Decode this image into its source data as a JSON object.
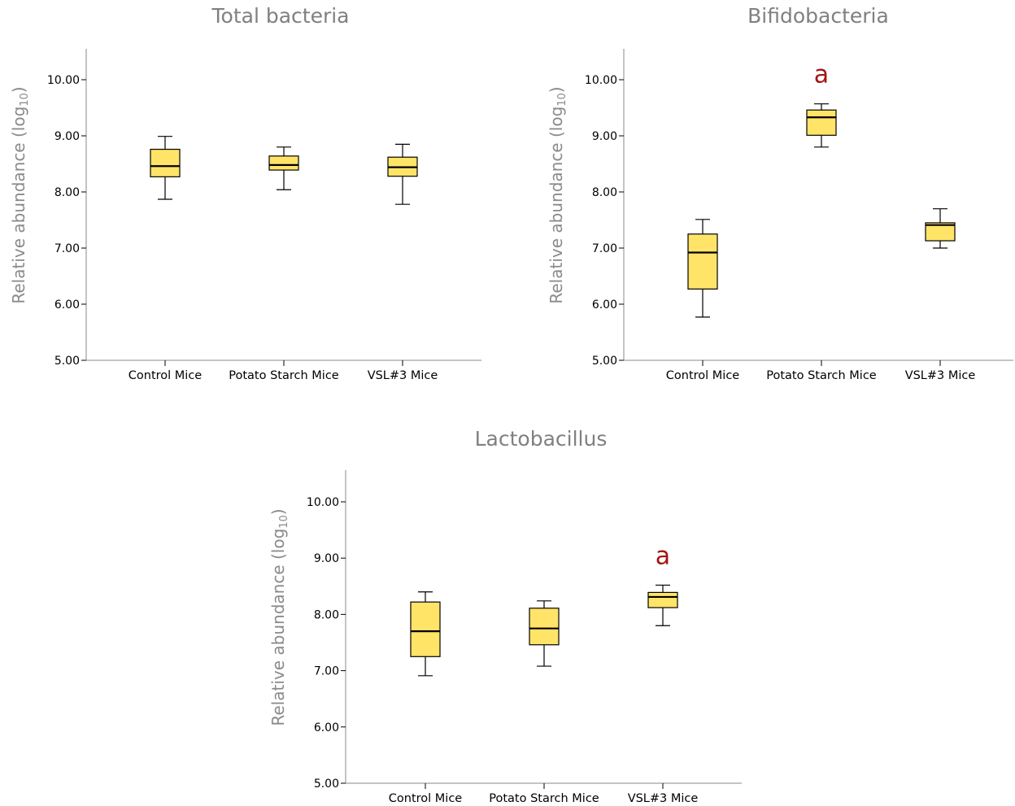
{
  "colors": {
    "box_fill": "#ffe468",
    "title": "#808080",
    "axis_label": "#8a8a8a",
    "axis_line": "#b0b0b0",
    "annotation": "#a31515"
  },
  "chart_data": [
    {
      "type": "box",
      "title": "Total bacteria",
      "ylabel": "Relative abundance (log",
      "ylabel_sub": "10",
      "ylabel_end": ")",
      "ylim": [
        5,
        10.5
      ],
      "yticks": [
        5,
        6,
        7,
        8,
        9,
        10
      ],
      "ytick_labels": [
        "5.00",
        "6.00",
        "7.00",
        "8.00",
        "9.00",
        "10.00"
      ],
      "grid": false,
      "categories": [
        "Control Mice",
        "Potato Starch Mice",
        "VSL#3 Mice"
      ],
      "boxes": [
        {
          "min": 7.87,
          "q1": 8.27,
          "median": 8.46,
          "q3": 8.76,
          "max": 8.99,
          "annotation": ""
        },
        {
          "min": 8.04,
          "q1": 8.39,
          "median": 8.48,
          "q3": 8.64,
          "max": 8.8,
          "annotation": ""
        },
        {
          "min": 7.78,
          "q1": 8.28,
          "median": 8.44,
          "q3": 8.62,
          "max": 8.85,
          "annotation": ""
        }
      ]
    },
    {
      "type": "box",
      "title": "Bifidobacteria",
      "ylabel": "Relative abundance (log",
      "ylabel_sub": "10",
      "ylabel_end": ")",
      "ylim": [
        5,
        10.5
      ],
      "yticks": [
        5,
        6,
        7,
        8,
        9,
        10
      ],
      "ytick_labels": [
        "5.00",
        "6.00",
        "7.00",
        "8.00",
        "9.00",
        "10.00"
      ],
      "grid": false,
      "categories": [
        "Control Mice",
        "Potato Starch Mice",
        "VSL#3 Mice"
      ],
      "boxes": [
        {
          "min": 5.77,
          "q1": 6.27,
          "median": 6.92,
          "q3": 7.25,
          "max": 7.51,
          "annotation": ""
        },
        {
          "min": 8.8,
          "q1": 9.01,
          "median": 9.33,
          "q3": 9.46,
          "max": 9.57,
          "annotation": "a"
        },
        {
          "min": 7.0,
          "q1": 7.13,
          "median": 7.41,
          "q3": 7.45,
          "max": 7.7,
          "annotation": ""
        }
      ]
    },
    {
      "type": "box",
      "title": "Lactobacillus",
      "ylabel": "Relative abundance (log",
      "ylabel_sub": "10",
      "ylabel_end": ")",
      "ylim": [
        5,
        10.5
      ],
      "yticks": [
        5,
        6,
        7,
        8,
        9,
        10
      ],
      "ytick_labels": [
        "5.00",
        "6.00",
        "7.00",
        "8.00",
        "9.00",
        "10.00"
      ],
      "grid": false,
      "categories": [
        "Control Mice",
        "Potato Starch Mice",
        "VSL#3 Mice"
      ],
      "boxes": [
        {
          "min": 6.91,
          "q1": 7.25,
          "median": 7.7,
          "q3": 8.22,
          "max": 8.4,
          "annotation": ""
        },
        {
          "min": 7.08,
          "q1": 7.46,
          "median": 7.75,
          "q3": 8.11,
          "max": 8.24,
          "annotation": ""
        },
        {
          "min": 7.8,
          "q1": 8.12,
          "median": 8.31,
          "q3": 8.39,
          "max": 8.52,
          "annotation": "a"
        }
      ]
    }
  ]
}
